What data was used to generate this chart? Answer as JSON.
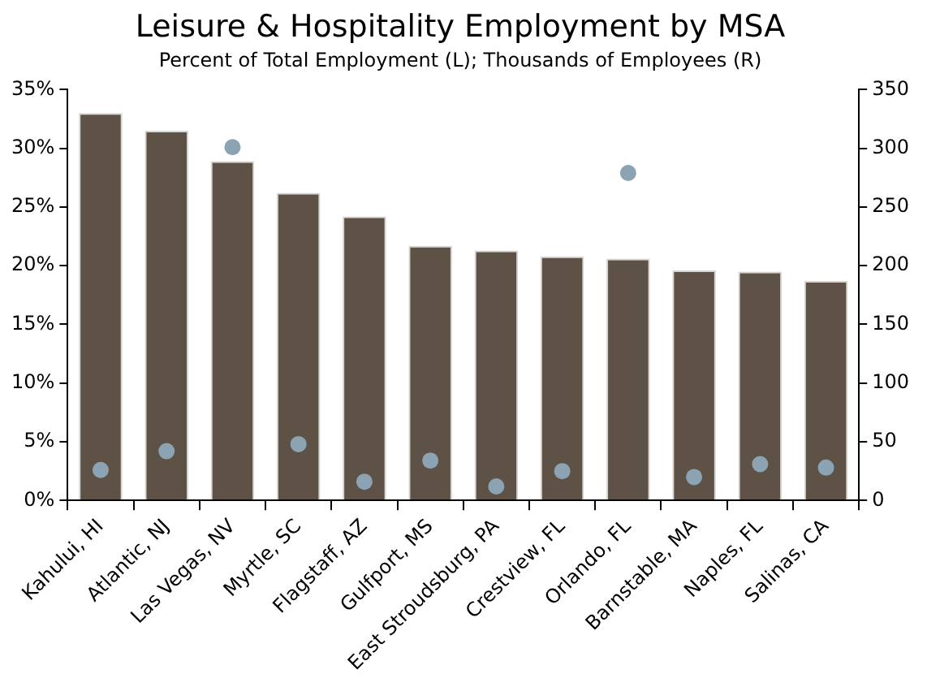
{
  "chart_data": {
    "type": "bar",
    "title": "Leisure & Hospitality Employment by MSA",
    "subtitle": "Percent of Total Employment (L); Thousands of Employees (R)",
    "categories": [
      "Kahului, HI",
      "Atlantic, NJ",
      "Las Vegas, NV",
      "Myrtle, SC",
      "Flagstaff, AZ",
      "Gulfport, MS",
      "East Stroudsburg, PA",
      "Crestview, FL",
      "Orlando, FL",
      "Barnstable, MA",
      "Naples, FL",
      "Salinas, CA"
    ],
    "series": [
      {
        "color": "#5e5246",
        "values": [
          33.0,
          31.5,
          28.9,
          26.2,
          24.2,
          21.7,
          21.3,
          20.8,
          20.6,
          19.6,
          19.5,
          18.7
        ]
      },
      {
        "type": "scatter",
        "axis": "y2",
        "color": "#8ba3b3",
        "x": [
          "Kahului, HI",
          "Atlantic, NJ",
          "Las Vegas, NV",
          "Myrtle, SC",
          "Flagstaff, AZ",
          "Gulfport, MS",
          "East Stroudsburg, PA",
          "Crestview, FL",
          "Orlando, FL",
          "Barnstable, MA",
          "Naples, FL",
          "Salinas, CA"
        ],
        "values": [
          26,
          42,
          301,
          48,
          16,
          34,
          12,
          25,
          279,
          20,
          31,
          28
        ]
      }
    ],
    "ylim": [
      0,
      35
    ],
    "yticks": [
      {
        "value": 0,
        "label": "0%"
      },
      {
        "value": 5,
        "label": "5%"
      },
      {
        "value": 10,
        "label": "10%"
      },
      {
        "value": 15,
        "label": "15%"
      },
      {
        "value": 20,
        "label": "20%"
      },
      {
        "value": 25,
        "label": "25%"
      },
      {
        "value": 30,
        "label": "30%"
      },
      {
        "value": 35,
        "label": "35%"
      }
    ],
    "y2lim": [
      0,
      350
    ],
    "y2ticks": [
      0,
      50,
      100,
      150,
      200,
      250,
      300,
      350
    ],
    "grid": false,
    "legend": false,
    "marker": "circle"
  }
}
